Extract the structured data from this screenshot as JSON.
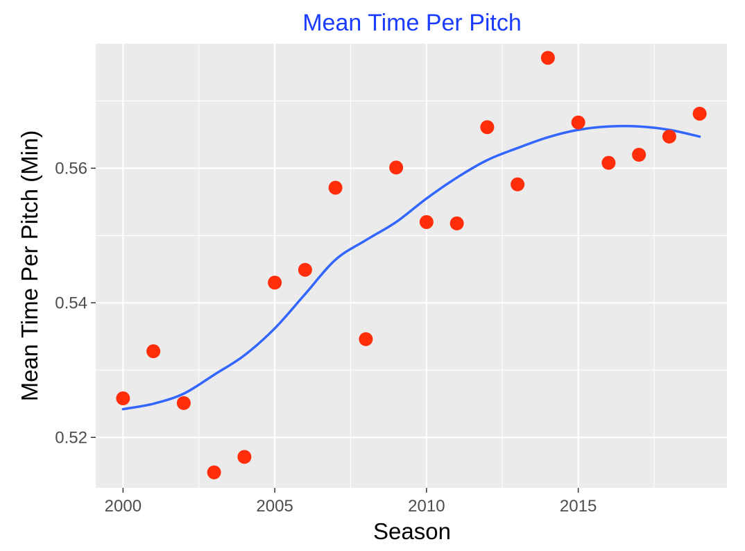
{
  "chart_data": {
    "type": "scatter",
    "title": "Mean Time Per Pitch",
    "xlabel": "Season",
    "ylabel": "Mean Time Per Pitch (Min)",
    "xlim": [
      1999.1,
      2019.9
    ],
    "ylim": [
      0.5125,
      0.5785
    ],
    "x_ticks": [
      2000,
      2005,
      2010,
      2015
    ],
    "x_tick_labels": [
      "2000",
      "2005",
      "2010",
      "2015"
    ],
    "y_ticks": [
      0.52,
      0.54,
      0.56
    ],
    "y_tick_labels": [
      "0.52",
      "0.54",
      "0.56"
    ],
    "grid": true,
    "background": "#ebebeb",
    "colors": {
      "points": "#ff2d0a",
      "smooth": "#3366ff",
      "title": "#1a3cff"
    },
    "series": [
      {
        "type": "scatter",
        "x": [
          2000,
          2001,
          2002,
          2003,
          2004,
          2005,
          2006,
          2007,
          2008,
          2009,
          2010,
          2011,
          2012,
          2013,
          2014,
          2015,
          2016,
          2017,
          2018,
          2019
        ],
        "y": [
          0.5258,
          0.5328,
          0.5251,
          0.5148,
          0.5171,
          0.543,
          0.5449,
          0.5571,
          0.5346,
          0.5601,
          0.552,
          0.5518,
          0.5661,
          0.5576,
          0.5764,
          0.5668,
          0.5608,
          0.562,
          0.5647,
          0.5681
        ]
      },
      {
        "type": "line",
        "x": [
          2000,
          2001,
          2002,
          2003,
          2004,
          2005,
          2006,
          2007,
          2008,
          2009,
          2010,
          2011,
          2012,
          2013,
          2014,
          2015,
          2016,
          2017,
          2018,
          2019
        ],
        "y": [
          0.5242,
          0.525,
          0.5265,
          0.5293,
          0.5322,
          0.5362,
          0.5413,
          0.5464,
          0.5493,
          0.552,
          0.5555,
          0.5586,
          0.5612,
          0.563,
          0.5646,
          0.5657,
          0.5662,
          0.5662,
          0.5657,
          0.5647
        ]
      }
    ]
  }
}
